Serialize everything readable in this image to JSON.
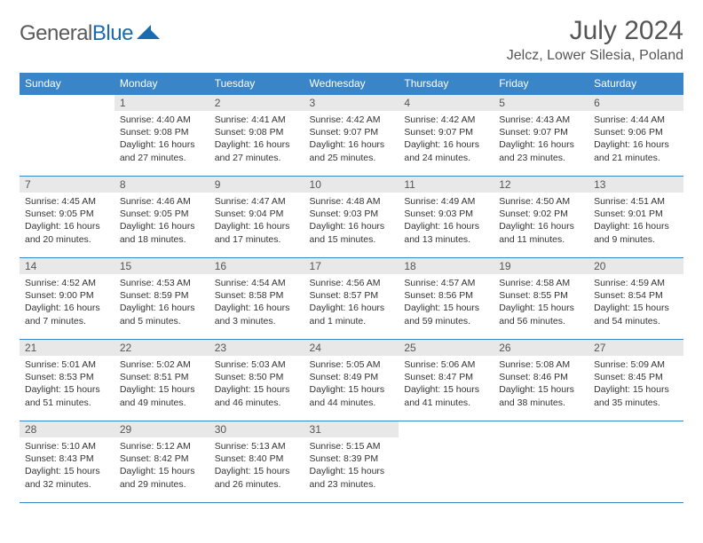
{
  "logo": {
    "text1": "General",
    "text2": "Blue"
  },
  "title": "July 2024",
  "location": "Jelcz, Lower Silesia, Poland",
  "colors": {
    "header_bg": "#3a85c8",
    "header_text": "#ffffff",
    "daynum_bg": "#e8e8e8",
    "border": "#3a85c8",
    "logo_gray": "#5a5a5a",
    "logo_blue": "#1a6bb0"
  },
  "day_headers": [
    "Sunday",
    "Monday",
    "Tuesday",
    "Wednesday",
    "Thursday",
    "Friday",
    "Saturday"
  ],
  "weeks": [
    [
      {
        "num": "",
        "lines": []
      },
      {
        "num": "1",
        "lines": [
          "Sunrise: 4:40 AM",
          "Sunset: 9:08 PM",
          "Daylight: 16 hours and 27 minutes."
        ]
      },
      {
        "num": "2",
        "lines": [
          "Sunrise: 4:41 AM",
          "Sunset: 9:08 PM",
          "Daylight: 16 hours and 27 minutes."
        ]
      },
      {
        "num": "3",
        "lines": [
          "Sunrise: 4:42 AM",
          "Sunset: 9:07 PM",
          "Daylight: 16 hours and 25 minutes."
        ]
      },
      {
        "num": "4",
        "lines": [
          "Sunrise: 4:42 AM",
          "Sunset: 9:07 PM",
          "Daylight: 16 hours and 24 minutes."
        ]
      },
      {
        "num": "5",
        "lines": [
          "Sunrise: 4:43 AM",
          "Sunset: 9:07 PM",
          "Daylight: 16 hours and 23 minutes."
        ]
      },
      {
        "num": "6",
        "lines": [
          "Sunrise: 4:44 AM",
          "Sunset: 9:06 PM",
          "Daylight: 16 hours and 21 minutes."
        ]
      }
    ],
    [
      {
        "num": "7",
        "lines": [
          "Sunrise: 4:45 AM",
          "Sunset: 9:05 PM",
          "Daylight: 16 hours and 20 minutes."
        ]
      },
      {
        "num": "8",
        "lines": [
          "Sunrise: 4:46 AM",
          "Sunset: 9:05 PM",
          "Daylight: 16 hours and 18 minutes."
        ]
      },
      {
        "num": "9",
        "lines": [
          "Sunrise: 4:47 AM",
          "Sunset: 9:04 PM",
          "Daylight: 16 hours and 17 minutes."
        ]
      },
      {
        "num": "10",
        "lines": [
          "Sunrise: 4:48 AM",
          "Sunset: 9:03 PM",
          "Daylight: 16 hours and 15 minutes."
        ]
      },
      {
        "num": "11",
        "lines": [
          "Sunrise: 4:49 AM",
          "Sunset: 9:03 PM",
          "Daylight: 16 hours and 13 minutes."
        ]
      },
      {
        "num": "12",
        "lines": [
          "Sunrise: 4:50 AM",
          "Sunset: 9:02 PM",
          "Daylight: 16 hours and 11 minutes."
        ]
      },
      {
        "num": "13",
        "lines": [
          "Sunrise: 4:51 AM",
          "Sunset: 9:01 PM",
          "Daylight: 16 hours and 9 minutes."
        ]
      }
    ],
    [
      {
        "num": "14",
        "lines": [
          "Sunrise: 4:52 AM",
          "Sunset: 9:00 PM",
          "Daylight: 16 hours and 7 minutes."
        ]
      },
      {
        "num": "15",
        "lines": [
          "Sunrise: 4:53 AM",
          "Sunset: 8:59 PM",
          "Daylight: 16 hours and 5 minutes."
        ]
      },
      {
        "num": "16",
        "lines": [
          "Sunrise: 4:54 AM",
          "Sunset: 8:58 PM",
          "Daylight: 16 hours and 3 minutes."
        ]
      },
      {
        "num": "17",
        "lines": [
          "Sunrise: 4:56 AM",
          "Sunset: 8:57 PM",
          "Daylight: 16 hours and 1 minute."
        ]
      },
      {
        "num": "18",
        "lines": [
          "Sunrise: 4:57 AM",
          "Sunset: 8:56 PM",
          "Daylight: 15 hours and 59 minutes."
        ]
      },
      {
        "num": "19",
        "lines": [
          "Sunrise: 4:58 AM",
          "Sunset: 8:55 PM",
          "Daylight: 15 hours and 56 minutes."
        ]
      },
      {
        "num": "20",
        "lines": [
          "Sunrise: 4:59 AM",
          "Sunset: 8:54 PM",
          "Daylight: 15 hours and 54 minutes."
        ]
      }
    ],
    [
      {
        "num": "21",
        "lines": [
          "Sunrise: 5:01 AM",
          "Sunset: 8:53 PM",
          "Daylight: 15 hours and 51 minutes."
        ]
      },
      {
        "num": "22",
        "lines": [
          "Sunrise: 5:02 AM",
          "Sunset: 8:51 PM",
          "Daylight: 15 hours and 49 minutes."
        ]
      },
      {
        "num": "23",
        "lines": [
          "Sunrise: 5:03 AM",
          "Sunset: 8:50 PM",
          "Daylight: 15 hours and 46 minutes."
        ]
      },
      {
        "num": "24",
        "lines": [
          "Sunrise: 5:05 AM",
          "Sunset: 8:49 PM",
          "Daylight: 15 hours and 44 minutes."
        ]
      },
      {
        "num": "25",
        "lines": [
          "Sunrise: 5:06 AM",
          "Sunset: 8:47 PM",
          "Daylight: 15 hours and 41 minutes."
        ]
      },
      {
        "num": "26",
        "lines": [
          "Sunrise: 5:08 AM",
          "Sunset: 8:46 PM",
          "Daylight: 15 hours and 38 minutes."
        ]
      },
      {
        "num": "27",
        "lines": [
          "Sunrise: 5:09 AM",
          "Sunset: 8:45 PM",
          "Daylight: 15 hours and 35 minutes."
        ]
      }
    ],
    [
      {
        "num": "28",
        "lines": [
          "Sunrise: 5:10 AM",
          "Sunset: 8:43 PM",
          "Daylight: 15 hours and 32 minutes."
        ]
      },
      {
        "num": "29",
        "lines": [
          "Sunrise: 5:12 AM",
          "Sunset: 8:42 PM",
          "Daylight: 15 hours and 29 minutes."
        ]
      },
      {
        "num": "30",
        "lines": [
          "Sunrise: 5:13 AM",
          "Sunset: 8:40 PM",
          "Daylight: 15 hours and 26 minutes."
        ]
      },
      {
        "num": "31",
        "lines": [
          "Sunrise: 5:15 AM",
          "Sunset: 8:39 PM",
          "Daylight: 15 hours and 23 minutes."
        ]
      },
      {
        "num": "",
        "lines": []
      },
      {
        "num": "",
        "lines": []
      },
      {
        "num": "",
        "lines": []
      }
    ]
  ]
}
